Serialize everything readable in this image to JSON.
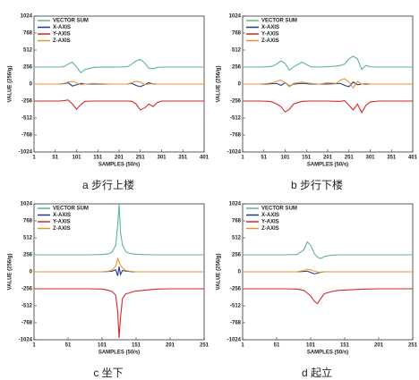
{
  "chart_data": [
    {
      "type": "line",
      "caption": "a  步行上楼",
      "xlabel": "SAMPLES (50/s)",
      "ylabel": "VALUE (256/g)",
      "xlim": [
        1,
        401
      ],
      "xticks": [
        1,
        51,
        101,
        151,
        201,
        251,
        301,
        351,
        401
      ],
      "ylim": [
        -1024,
        1024
      ],
      "yticks": [
        1024,
        768,
        512,
        256,
        0,
        -256,
        -512,
        -768,
        -1024
      ],
      "x": [
        1,
        21,
        41,
        61,
        71,
        81,
        91,
        101,
        111,
        121,
        141,
        161,
        181,
        201,
        221,
        231,
        241,
        251,
        261,
        271,
        281,
        291,
        301,
        321,
        341,
        361,
        381,
        401
      ],
      "series": [
        {
          "name": "VECTOR SUM",
          "color": "#5cb88a",
          "values": [
            256,
            256,
            256,
            256,
            262,
            300,
            330,
            260,
            170,
            220,
            250,
            255,
            255,
            256,
            262,
            300,
            350,
            370,
            320,
            240,
            230,
            250,
            256,
            256,
            256,
            256,
            256,
            256
          ]
        },
        {
          "name": "X-AXIS",
          "color": "#1f3c88",
          "values": [
            0,
            0,
            0,
            0,
            5,
            20,
            -30,
            -10,
            10,
            0,
            0,
            0,
            0,
            0,
            0,
            10,
            -20,
            -40,
            -10,
            20,
            0,
            0,
            0,
            0,
            0,
            0,
            0,
            0
          ]
        },
        {
          "name": "Y-AXIS",
          "color": "#d62728",
          "values": [
            -256,
            -256,
            -256,
            -256,
            -250,
            -240,
            -300,
            -380,
            -310,
            -260,
            -256,
            -256,
            -256,
            -256,
            -256,
            -260,
            -300,
            -390,
            -360,
            -300,
            -340,
            -280,
            -256,
            -256,
            -256,
            -256,
            -256,
            -256
          ]
        },
        {
          "name": "Z-AXIS",
          "color": "#f0922c",
          "values": [
            0,
            0,
            0,
            0,
            10,
            30,
            40,
            20,
            -10,
            0,
            10,
            5,
            0,
            0,
            0,
            20,
            40,
            30,
            -10,
            0,
            5,
            0,
            0,
            0,
            0,
            0,
            0,
            0
          ]
        }
      ]
    },
    {
      "type": "line",
      "caption": "b  步行下楼",
      "xlabel": "SAMPLES (50/s)",
      "ylabel": "VALUE (256/g)",
      "xlim": [
        1,
        401
      ],
      "xticks": [
        1,
        51,
        101,
        151,
        201,
        251,
        301,
        351,
        401
      ],
      "ylim": [
        -1024,
        1024
      ],
      "yticks": [
        1024,
        768,
        512,
        256,
        0,
        -256,
        -512,
        -768,
        -1024
      ],
      "x": [
        1,
        21,
        41,
        61,
        71,
        81,
        91,
        101,
        111,
        121,
        141,
        161,
        181,
        201,
        221,
        231,
        241,
        251,
        261,
        271,
        281,
        291,
        301,
        321,
        341,
        361,
        381,
        401
      ],
      "series": [
        {
          "name": "VECTOR SUM",
          "color": "#5cb88a",
          "values": [
            256,
            256,
            256,
            260,
            270,
            300,
            350,
            310,
            210,
            260,
            330,
            260,
            256,
            262,
            270,
            280,
            300,
            380,
            420,
            380,
            220,
            280,
            260,
            256,
            256,
            256,
            256,
            256
          ]
        },
        {
          "name": "X-AXIS",
          "color": "#1f3c88",
          "values": [
            0,
            0,
            0,
            0,
            5,
            10,
            -20,
            20,
            -30,
            0,
            10,
            0,
            0,
            0,
            5,
            10,
            -20,
            -40,
            30,
            -10,
            0,
            0,
            0,
            0,
            0,
            0,
            0,
            0
          ]
        },
        {
          "name": "Y-AXIS",
          "color": "#d62728",
          "values": [
            -256,
            -256,
            -256,
            -260,
            -270,
            -300,
            -340,
            -420,
            -380,
            -300,
            -260,
            -256,
            -256,
            -256,
            -260,
            -260,
            -250,
            -320,
            -390,
            -300,
            -430,
            -320,
            -270,
            -256,
            -256,
            -256,
            -256,
            -256
          ]
        },
        {
          "name": "Z-AXIS",
          "color": "#f0922c",
          "values": [
            0,
            0,
            0,
            10,
            20,
            40,
            60,
            20,
            -40,
            10,
            30,
            10,
            0,
            20,
            10,
            60,
            80,
            30,
            -60,
            40,
            0,
            10,
            0,
            0,
            0,
            0,
            0,
            0
          ]
        }
      ]
    },
    {
      "type": "line",
      "caption": "c  坐下",
      "xlabel": "SAMPLES (50/s)",
      "ylabel": "VALUE (256/g)",
      "xlim": [
        1,
        251
      ],
      "xticks": [
        1,
        51,
        101,
        151,
        201,
        251
      ],
      "ylim": [
        -1024,
        1024
      ],
      "yticks": [
        1024,
        768,
        512,
        256,
        0,
        -256,
        -512,
        -768,
        -1024
      ],
      "x": [
        1,
        21,
        41,
        61,
        81,
        101,
        111,
        116,
        121,
        124,
        126,
        128,
        131,
        136,
        141,
        146,
        151,
        161,
        181,
        201,
        221,
        241,
        251
      ],
      "series": [
        {
          "name": "VECTOR SUM",
          "color": "#5cb88a",
          "values": [
            256,
            256,
            256,
            256,
            256,
            262,
            270,
            300,
            400,
            700,
            1024,
            600,
            400,
            300,
            280,
            270,
            265,
            260,
            256,
            256,
            256,
            256,
            256
          ]
        },
        {
          "name": "X-AXIS",
          "color": "#1f3c88",
          "values": [
            0,
            0,
            0,
            0,
            0,
            0,
            5,
            10,
            30,
            -60,
            80,
            -40,
            20,
            10,
            5,
            0,
            0,
            0,
            0,
            0,
            0,
            0,
            0
          ]
        },
        {
          "name": "Y-AXIS",
          "color": "#d62728",
          "values": [
            -256,
            -256,
            -256,
            -256,
            -256,
            -260,
            -280,
            -300,
            -350,
            -600,
            -1000,
            -700,
            -400,
            -330,
            -320,
            -300,
            -290,
            -280,
            -260,
            -256,
            -256,
            -256,
            -256
          ]
        },
        {
          "name": "Z-AXIS",
          "color": "#f0922c",
          "values": [
            0,
            0,
            0,
            0,
            0,
            0,
            10,
            30,
            80,
            200,
            150,
            100,
            60,
            20,
            10,
            5,
            0,
            0,
            0,
            0,
            0,
            0,
            0
          ]
        }
      ]
    },
    {
      "type": "line",
      "caption": "d  起立",
      "xlabel": "SAMPLES (50/s)",
      "ylabel": "VALUE (256/g)",
      "xlim": [
        1,
        251
      ],
      "xticks": [
        1,
        51,
        101,
        151,
        201,
        251
      ],
      "ylim": [
        -1024,
        1024
      ],
      "yticks": [
        1024,
        768,
        512,
        256,
        0,
        -256,
        -512,
        -768,
        -1024
      ],
      "x": [
        1,
        21,
        41,
        61,
        81,
        91,
        96,
        101,
        106,
        111,
        116,
        121,
        131,
        141,
        161,
        181,
        201,
        221,
        241,
        251
      ],
      "series": [
        {
          "name": "VECTOR SUM",
          "color": "#5cb88a",
          "values": [
            256,
            256,
            256,
            256,
            260,
            330,
            450,
            400,
            280,
            220,
            200,
            230,
            250,
            256,
            256,
            256,
            256,
            256,
            256,
            256
          ]
        },
        {
          "name": "X-AXIS",
          "color": "#1f3c88",
          "values": [
            0,
            0,
            0,
            0,
            0,
            5,
            10,
            -10,
            -30,
            -20,
            -5,
            0,
            0,
            0,
            0,
            0,
            0,
            0,
            0,
            0
          ]
        },
        {
          "name": "Y-AXIS",
          "color": "#d62728",
          "values": [
            -256,
            -256,
            -256,
            -256,
            -260,
            -280,
            -320,
            -360,
            -440,
            -480,
            -400,
            -330,
            -300,
            -280,
            -270,
            -260,
            -256,
            -256,
            -256,
            -256
          ]
        },
        {
          "name": "Z-AXIS",
          "color": "#f0922c",
          "values": [
            0,
            0,
            0,
            0,
            0,
            20,
            40,
            30,
            10,
            0,
            -10,
            0,
            0,
            0,
            0,
            0,
            0,
            0,
            0,
            0
          ]
        }
      ]
    }
  ]
}
